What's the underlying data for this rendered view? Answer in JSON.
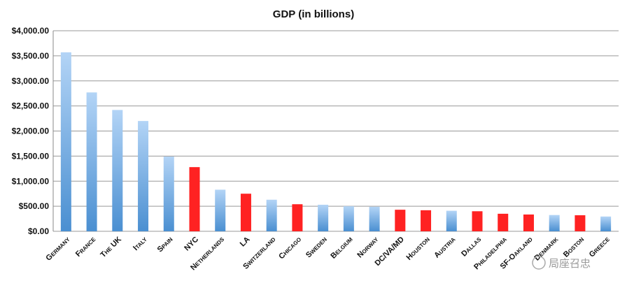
{
  "chart_data": {
    "type": "bar",
    "title": "GDP (in billions)",
    "xlabel": "",
    "ylabel": "",
    "ylim": [
      0,
      4000
    ],
    "yticks": [
      0,
      500,
      1000,
      1500,
      2000,
      2500,
      3000,
      3500,
      4000
    ],
    "ytick_labels": [
      "$0.00",
      "$500.00",
      "$1,000.00",
      "$1,500.00",
      "$2,000.00",
      "$2,500.00",
      "$3,000.00",
      "$3,500.00",
      "$4,000.00"
    ],
    "grid": true,
    "legend": "none",
    "categories": [
      "Germany",
      "France",
      "The UK",
      "Italy",
      "Spain",
      "NYC",
      "Netherlands",
      "LA",
      "Switzerland",
      "Chicago",
      "Sweden",
      "Belgium",
      "Norway",
      "DC/VA/MD",
      "Houston",
      "Austria",
      "Dallas",
      "Philadelphia",
      "SF-Oakland",
      "Denmark",
      "Boston",
      "Greece"
    ],
    "values": [
      3570,
      2770,
      2420,
      2200,
      1490,
      1280,
      830,
      750,
      630,
      540,
      530,
      500,
      490,
      430,
      420,
      410,
      400,
      350,
      335,
      325,
      320,
      295
    ],
    "highlighted": [
      "NYC",
      "LA",
      "Chicago",
      "DC/VA/MD",
      "Houston",
      "Dallas",
      "Philadelphia",
      "SF-Oakland",
      "Boston"
    ],
    "colors": {
      "country_top": "#b3d4f6",
      "country_bottom": "#4a8fd1",
      "city": "#ff2222",
      "grid": "#999999"
    }
  },
  "watermark": "局座召忠"
}
